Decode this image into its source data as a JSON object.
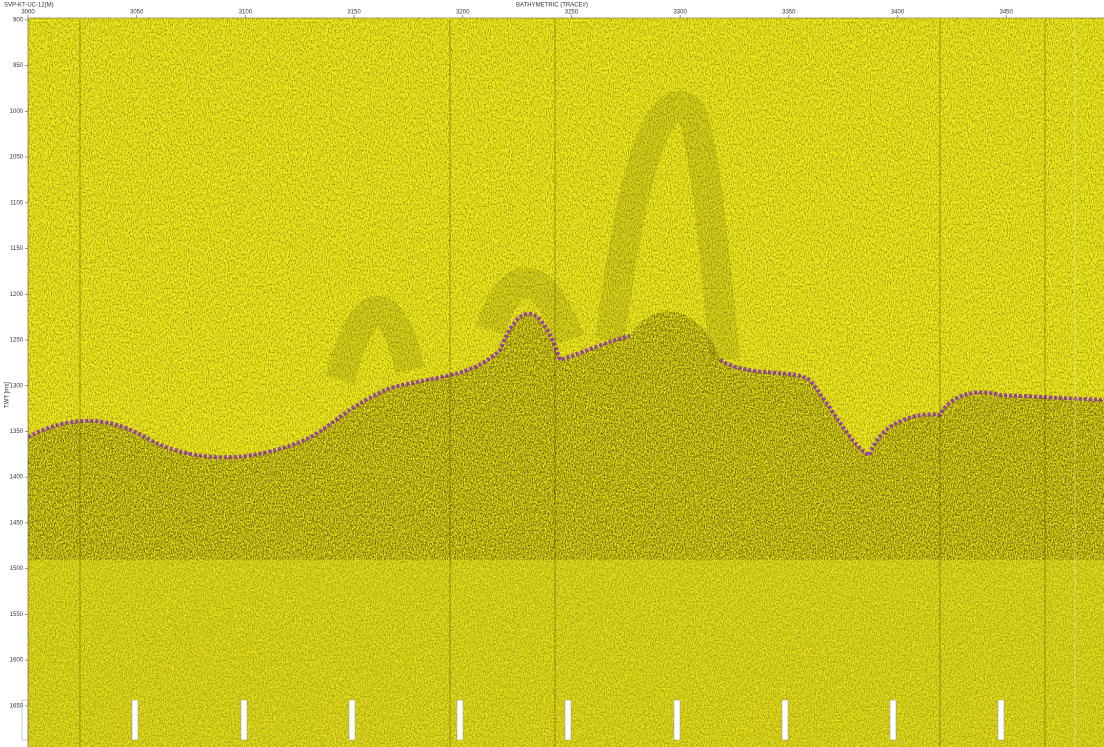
{
  "chart_data": {
    "type": "seismic",
    "header_left": "SVP-KT-UC-12(M)",
    "header_center": "BATHYMETRIC (TRACE#)",
    "ylabel": "TWT [ms]",
    "xlim": [
      3000,
      3495
    ],
    "xticks": [
      3000,
      3050,
      3100,
      3150,
      3200,
      3250,
      3300,
      3350,
      3400,
      3450
    ],
    "ylim": [
      898,
      1695
    ],
    "yticks": [
      900,
      950,
      1000,
      1050,
      1100,
      1150,
      1200,
      1250,
      1300,
      1350,
      1400,
      1450,
      1500,
      1550,
      1600,
      1650
    ],
    "background": "#f0ec1e",
    "reflector_color": "#8a2fb0"
  }
}
